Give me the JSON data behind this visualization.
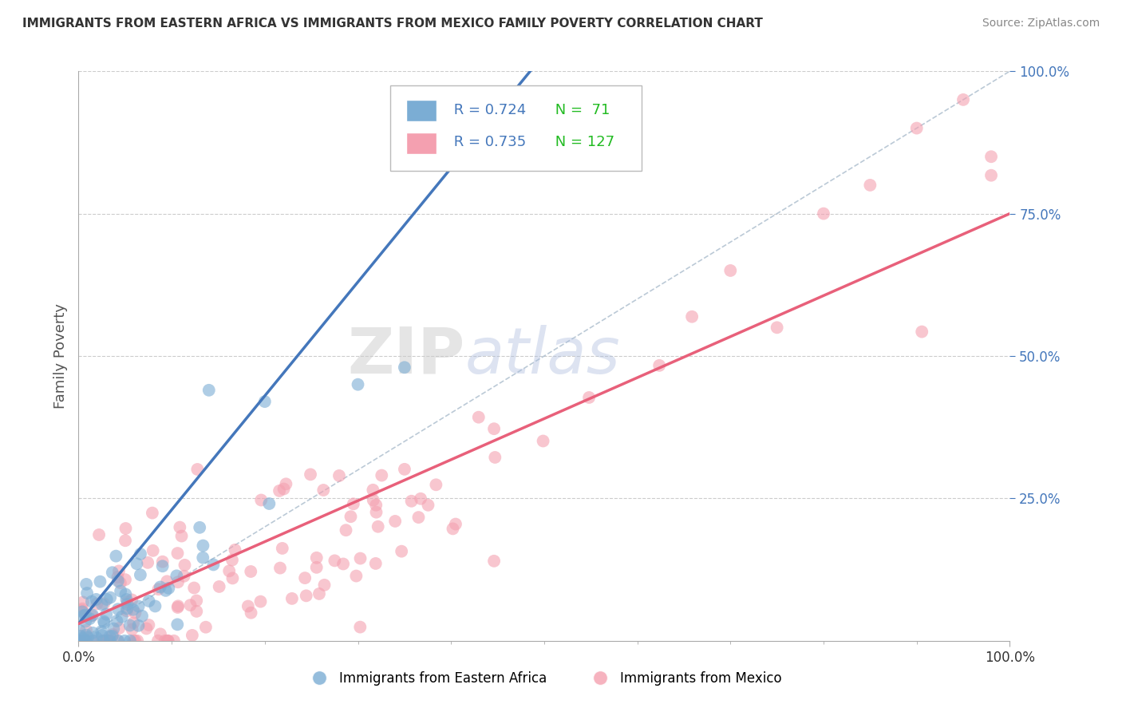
{
  "title": "IMMIGRANTS FROM EASTERN AFRICA VS IMMIGRANTS FROM MEXICO FAMILY POVERTY CORRELATION CHART",
  "source": "Source: ZipAtlas.com",
  "ylabel": "Family Poverty",
  "label1": "Immigrants from Eastern Africa",
  "label2": "Immigrants from Mexico",
  "color1": "#7BADD4",
  "color2": "#F4A0B0",
  "trend_color1": "#4477BB",
  "trend_color2": "#E8607A",
  "ref_line_color": "#AABCCC",
  "watermark_zip": "ZIP",
  "watermark_atlas": "atlas",
  "background": "#FFFFFF",
  "grid_color": "#CCCCCC",
  "legend_r1": "R = 0.724",
  "legend_n1": "N =  71",
  "legend_r2": "R = 0.735",
  "legend_n2": "N = 127",
  "r_color": "#4477BB",
  "n_color": "#22BB22",
  "ytick_color": "#4477BB",
  "title_fontsize": 11,
  "source_fontsize": 10,
  "tick_fontsize": 12
}
